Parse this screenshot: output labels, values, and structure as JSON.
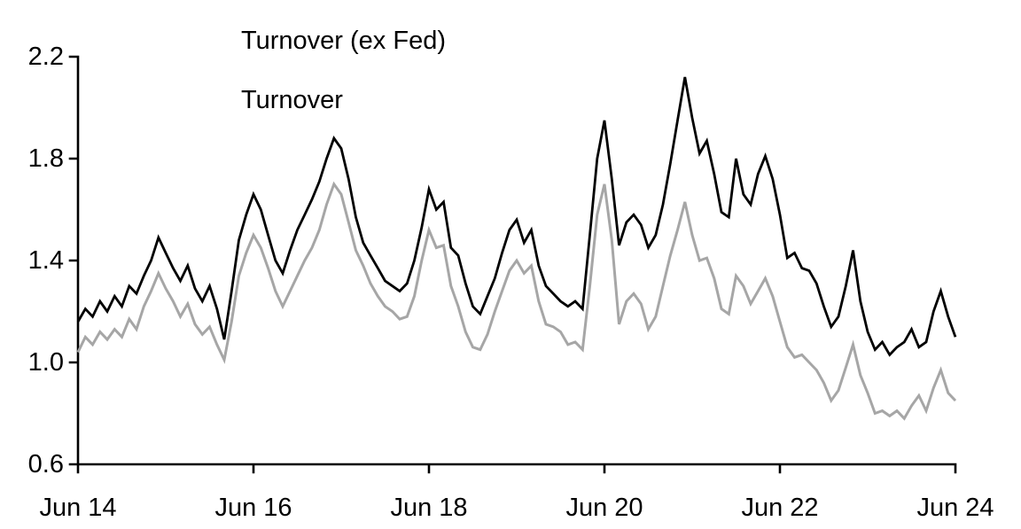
{
  "chart_data": {
    "type": "line",
    "title": "",
    "xlabel": "",
    "ylabel": "",
    "x_unit": "monthly, Jun 2014 to Jun 2024",
    "x_tick_labels": [
      "Jun 14",
      "Jun 16",
      "Jun 18",
      "Jun 20",
      "Jun 22",
      "Jun 24"
    ],
    "x_tick_indices": [
      0,
      24,
      48,
      72,
      96,
      120
    ],
    "y_tick_labels": [
      "2.2",
      "1.8",
      "1.4",
      "1.0",
      "0.6"
    ],
    "y_ticks": [
      2.2,
      1.8,
      1.4,
      1.0,
      0.6
    ],
    "ylim": [
      0.6,
      2.2
    ],
    "grid": false,
    "legend_position": "top-left-inside",
    "series": [
      {
        "name": "Turnover (ex Fed)",
        "color": "#000000",
        "values": [
          1.16,
          1.21,
          1.18,
          1.24,
          1.2,
          1.26,
          1.22,
          1.3,
          1.27,
          1.34,
          1.4,
          1.49,
          1.43,
          1.37,
          1.32,
          1.38,
          1.29,
          1.24,
          1.3,
          1.21,
          1.09,
          1.28,
          1.48,
          1.58,
          1.66,
          1.6,
          1.5,
          1.4,
          1.35,
          1.44,
          1.52,
          1.58,
          1.64,
          1.71,
          1.8,
          1.88,
          1.84,
          1.72,
          1.57,
          1.47,
          1.42,
          1.37,
          1.32,
          1.3,
          1.28,
          1.31,
          1.4,
          1.53,
          1.68,
          1.6,
          1.63,
          1.45,
          1.42,
          1.31,
          1.22,
          1.19,
          1.26,
          1.33,
          1.43,
          1.52,
          1.56,
          1.47,
          1.52,
          1.38,
          1.3,
          1.27,
          1.24,
          1.22,
          1.24,
          1.21,
          1.5,
          1.8,
          1.95,
          1.72,
          1.46,
          1.55,
          1.58,
          1.54,
          1.45,
          1.5,
          1.62,
          1.78,
          1.95,
          2.12,
          1.96,
          1.82,
          1.87,
          1.74,
          1.59,
          1.57,
          1.8,
          1.66,
          1.62,
          1.74,
          1.81,
          1.72,
          1.58,
          1.41,
          1.43,
          1.37,
          1.36,
          1.31,
          1.22,
          1.14,
          1.18,
          1.3,
          1.44,
          1.24,
          1.12,
          1.05,
          1.08,
          1.03,
          1.06,
          1.08,
          1.13,
          1.06,
          1.08,
          1.2,
          1.28,
          1.18,
          1.1
        ]
      },
      {
        "name": "Turnover",
        "color": "#a6a6a6",
        "values": [
          1.04,
          1.1,
          1.07,
          1.12,
          1.09,
          1.13,
          1.1,
          1.17,
          1.13,
          1.22,
          1.28,
          1.35,
          1.29,
          1.24,
          1.18,
          1.23,
          1.15,
          1.11,
          1.14,
          1.07,
          1.01,
          1.16,
          1.34,
          1.43,
          1.5,
          1.45,
          1.37,
          1.28,
          1.22,
          1.28,
          1.34,
          1.4,
          1.45,
          1.52,
          1.62,
          1.7,
          1.66,
          1.55,
          1.44,
          1.38,
          1.31,
          1.26,
          1.22,
          1.2,
          1.17,
          1.18,
          1.26,
          1.4,
          1.52,
          1.45,
          1.46,
          1.3,
          1.22,
          1.12,
          1.06,
          1.05,
          1.11,
          1.2,
          1.28,
          1.36,
          1.4,
          1.35,
          1.38,
          1.24,
          1.15,
          1.14,
          1.12,
          1.07,
          1.08,
          1.05,
          1.3,
          1.58,
          1.7,
          1.48,
          1.15,
          1.24,
          1.27,
          1.23,
          1.13,
          1.18,
          1.3,
          1.42,
          1.52,
          1.63,
          1.5,
          1.4,
          1.41,
          1.33,
          1.21,
          1.19,
          1.34,
          1.3,
          1.23,
          1.28,
          1.33,
          1.26,
          1.16,
          1.06,
          1.02,
          1.03,
          1.0,
          0.97,
          0.92,
          0.85,
          0.89,
          0.98,
          1.07,
          0.95,
          0.88,
          0.8,
          0.81,
          0.79,
          0.81,
          0.78,
          0.83,
          0.87,
          0.81,
          0.9,
          0.97,
          0.88,
          0.85
        ]
      }
    ]
  }
}
